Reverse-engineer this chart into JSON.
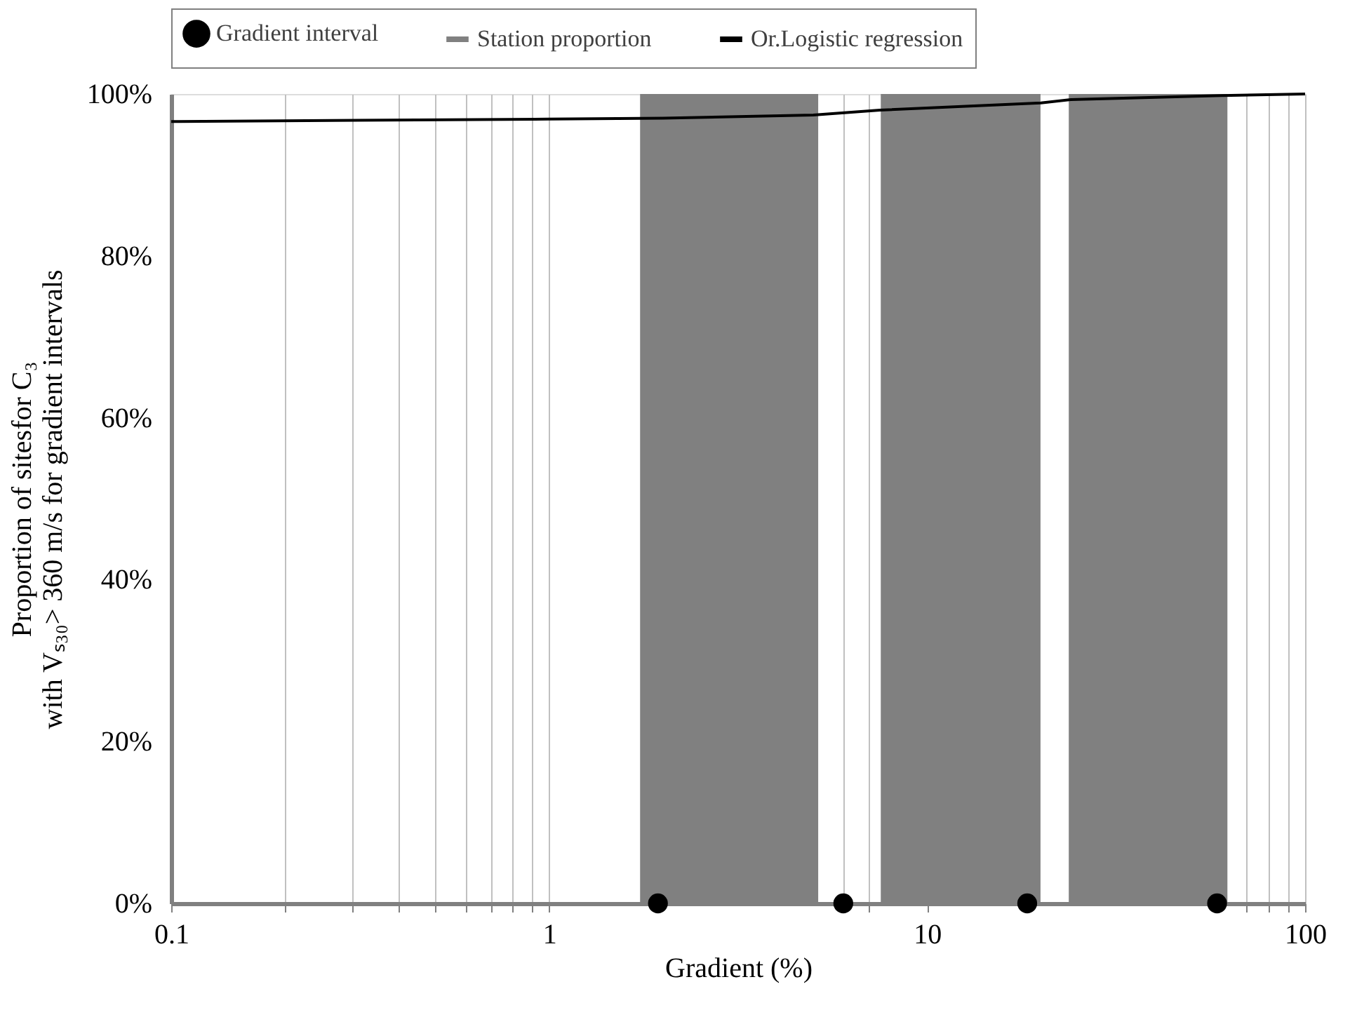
{
  "chart_data": {
    "type": "scatter",
    "xlabel": "Gradient (%)",
    "ylabel": "Proportion of sitesfor C₃\nwith Vₛ₃₀> 360 m/s for gradient intervals",
    "log": "x",
    "grid": "x",
    "legend": "top",
    "xlim": [
      0.1,
      100
    ],
    "xticks": [
      0.1,
      {
        "value": 0.2,
        "label": null
      },
      {
        "value": 0.3,
        "label": null
      },
      {
        "value": 0.4,
        "label": null
      },
      {
        "value": 0.5,
        "label": null
      },
      {
        "value": 0.6,
        "label": null
      },
      {
        "value": 0.7,
        "label": null
      },
      {
        "value": 0.8,
        "label": null
      },
      {
        "value": 0.9,
        "label": null
      },
      1,
      {
        "value": 6,
        "label": null
      },
      {
        "value": 7,
        "label": null
      },
      10,
      {
        "value": 70,
        "label": null
      },
      {
        "value": 80,
        "label": null
      },
      {
        "value": 90,
        "label": null
      },
      100
    ],
    "ylim": [
      0,
      100
    ],
    "yticks": [
      {
        "value": 0,
        "label": "0%"
      },
      {
        "value": 20,
        "label": "20%"
      },
      {
        "value": 40,
        "label": "40%"
      },
      {
        "value": 60,
        "label": "60%"
      },
      {
        "value": 80,
        "label": "80%"
      },
      {
        "value": 100,
        "label": "100%"
      }
    ],
    "series": [
      {
        "name": "Gradient interval",
        "marker": "circle",
        "color": "#000000",
        "x": [
          1.94,
          6.0,
          18.4,
          58.5
        ],
        "values": [
          0,
          0,
          0,
          0
        ]
      },
      {
        "name": "Station proportion",
        "type": "histogram",
        "color": "#808080",
        "bins": [
          1.74,
          5.15,
          7.54,
          19.95,
          23.7,
          62.3
        ],
        "values": [
          100,
          0,
          100,
          0,
          100
        ]
      },
      {
        "name": "Or.Logistic regression",
        "type": "line",
        "color": "#000000",
        "x": [
          0.1,
          1,
          2,
          5,
          7.5,
          20,
          24,
          60,
          100
        ],
        "values": [
          96.6,
          96.9,
          97.0,
          97.4,
          98.0,
          98.9,
          99.3,
          99.8,
          100
        ]
      }
    ]
  }
}
